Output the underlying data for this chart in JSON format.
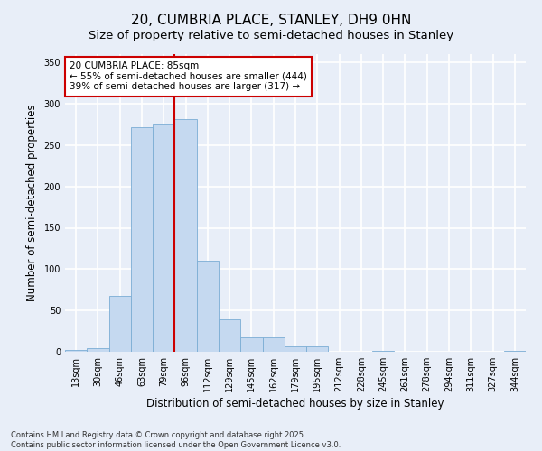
{
  "title": "20, CUMBRIA PLACE, STANLEY, DH9 0HN",
  "subtitle": "Size of property relative to semi-detached houses in Stanley",
  "xlabel": "Distribution of semi-detached houses by size in Stanley",
  "ylabel": "Number of semi-detached properties",
  "categories": [
    "13sqm",
    "30sqm",
    "46sqm",
    "63sqm",
    "79sqm",
    "96sqm",
    "112sqm",
    "129sqm",
    "145sqm",
    "162sqm",
    "179sqm",
    "195sqm",
    "212sqm",
    "228sqm",
    "245sqm",
    "261sqm",
    "278sqm",
    "294sqm",
    "311sqm",
    "327sqm",
    "344sqm"
  ],
  "values": [
    2,
    4,
    68,
    272,
    275,
    282,
    110,
    39,
    17,
    17,
    7,
    7,
    0,
    0,
    1,
    0,
    0,
    0,
    0,
    0,
    1
  ],
  "bar_color": "#c5d9f0",
  "bar_edge_color": "#7badd4",
  "property_line_index": 4,
  "annotation_text": "20 CUMBRIA PLACE: 85sqm\n← 55% of semi-detached houses are smaller (444)\n39% of semi-detached houses are larger (317) →",
  "annotation_box_color": "#ffffff",
  "annotation_box_edge": "#cc0000",
  "vline_color": "#cc0000",
  "background_color": "#e8eef8",
  "grid_color": "#ffffff",
  "ylim": [
    0,
    360
  ],
  "yticks": [
    0,
    50,
    100,
    150,
    200,
    250,
    300,
    350
  ],
  "footnote": "Contains HM Land Registry data © Crown copyright and database right 2025.\nContains public sector information licensed under the Open Government Licence v3.0.",
  "title_fontsize": 11,
  "subtitle_fontsize": 9.5,
  "label_fontsize": 8.5,
  "tick_fontsize": 7,
  "annotation_fontsize": 7.5,
  "footnote_fontsize": 6
}
